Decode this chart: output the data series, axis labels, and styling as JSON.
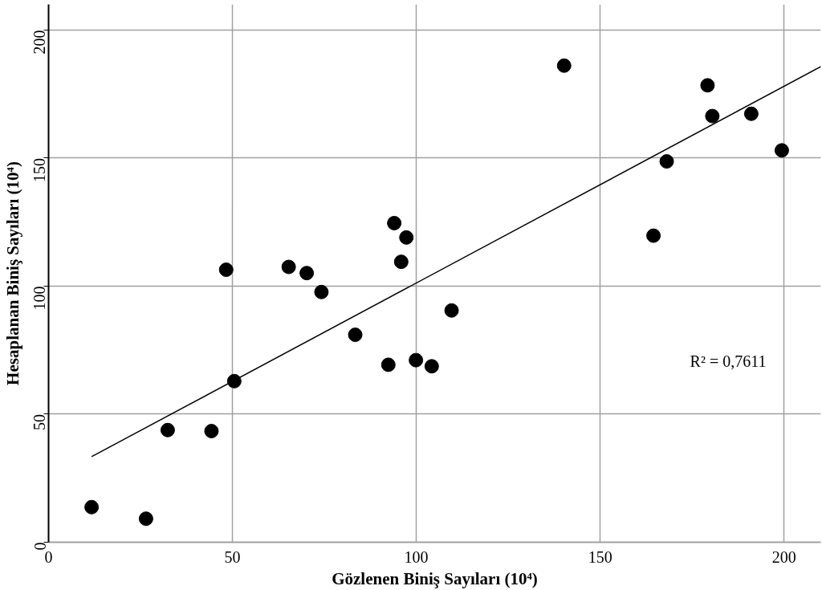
{
  "chart_data": {
    "type": "scatter",
    "xlabel": "Gözlenen Biniş Sayıları (10⁴)",
    "ylabel": "Hesaplanan Biniş Sayıları (10⁴)",
    "xlim": [
      0,
      210
    ],
    "ylim": [
      0,
      210
    ],
    "xticks": [
      0,
      50,
      100,
      150,
      200
    ],
    "yticks": [
      0,
      50,
      100,
      150,
      200
    ],
    "grid": true,
    "marker": "circle",
    "annotations": [
      "R² = 0,7611"
    ],
    "series": [
      {
        "color": "#000000",
        "x": [
          11.7,
          26.5,
          32.4,
          44.3,
          48.3,
          50.5,
          65.3,
          70.2,
          74.2,
          83.4,
          92.4,
          94.0,
          97.3,
          95.9,
          99.9,
          104.2,
          109.6,
          140.2,
          179.2,
          180.5,
          191.1,
          199.4,
          168.1,
          164.5
        ],
        "values": [
          13.7,
          9.2,
          43.8,
          43.4,
          106.4,
          62.9,
          107.5,
          105.1,
          97.7,
          81.0,
          69.3,
          124.6,
          119.0,
          109.5,
          71.1,
          68.7,
          90.5,
          186.1,
          178.4,
          166.4,
          167.3,
          153.0,
          148.7,
          119.7
        ]
      },
      {
        "type": "line",
        "color": "#000000",
        "line_style": "solid",
        "marker": "none",
        "x": [
          11.7,
          210
        ],
        "values": [
          33.4,
          185.7
        ]
      }
    ]
  }
}
